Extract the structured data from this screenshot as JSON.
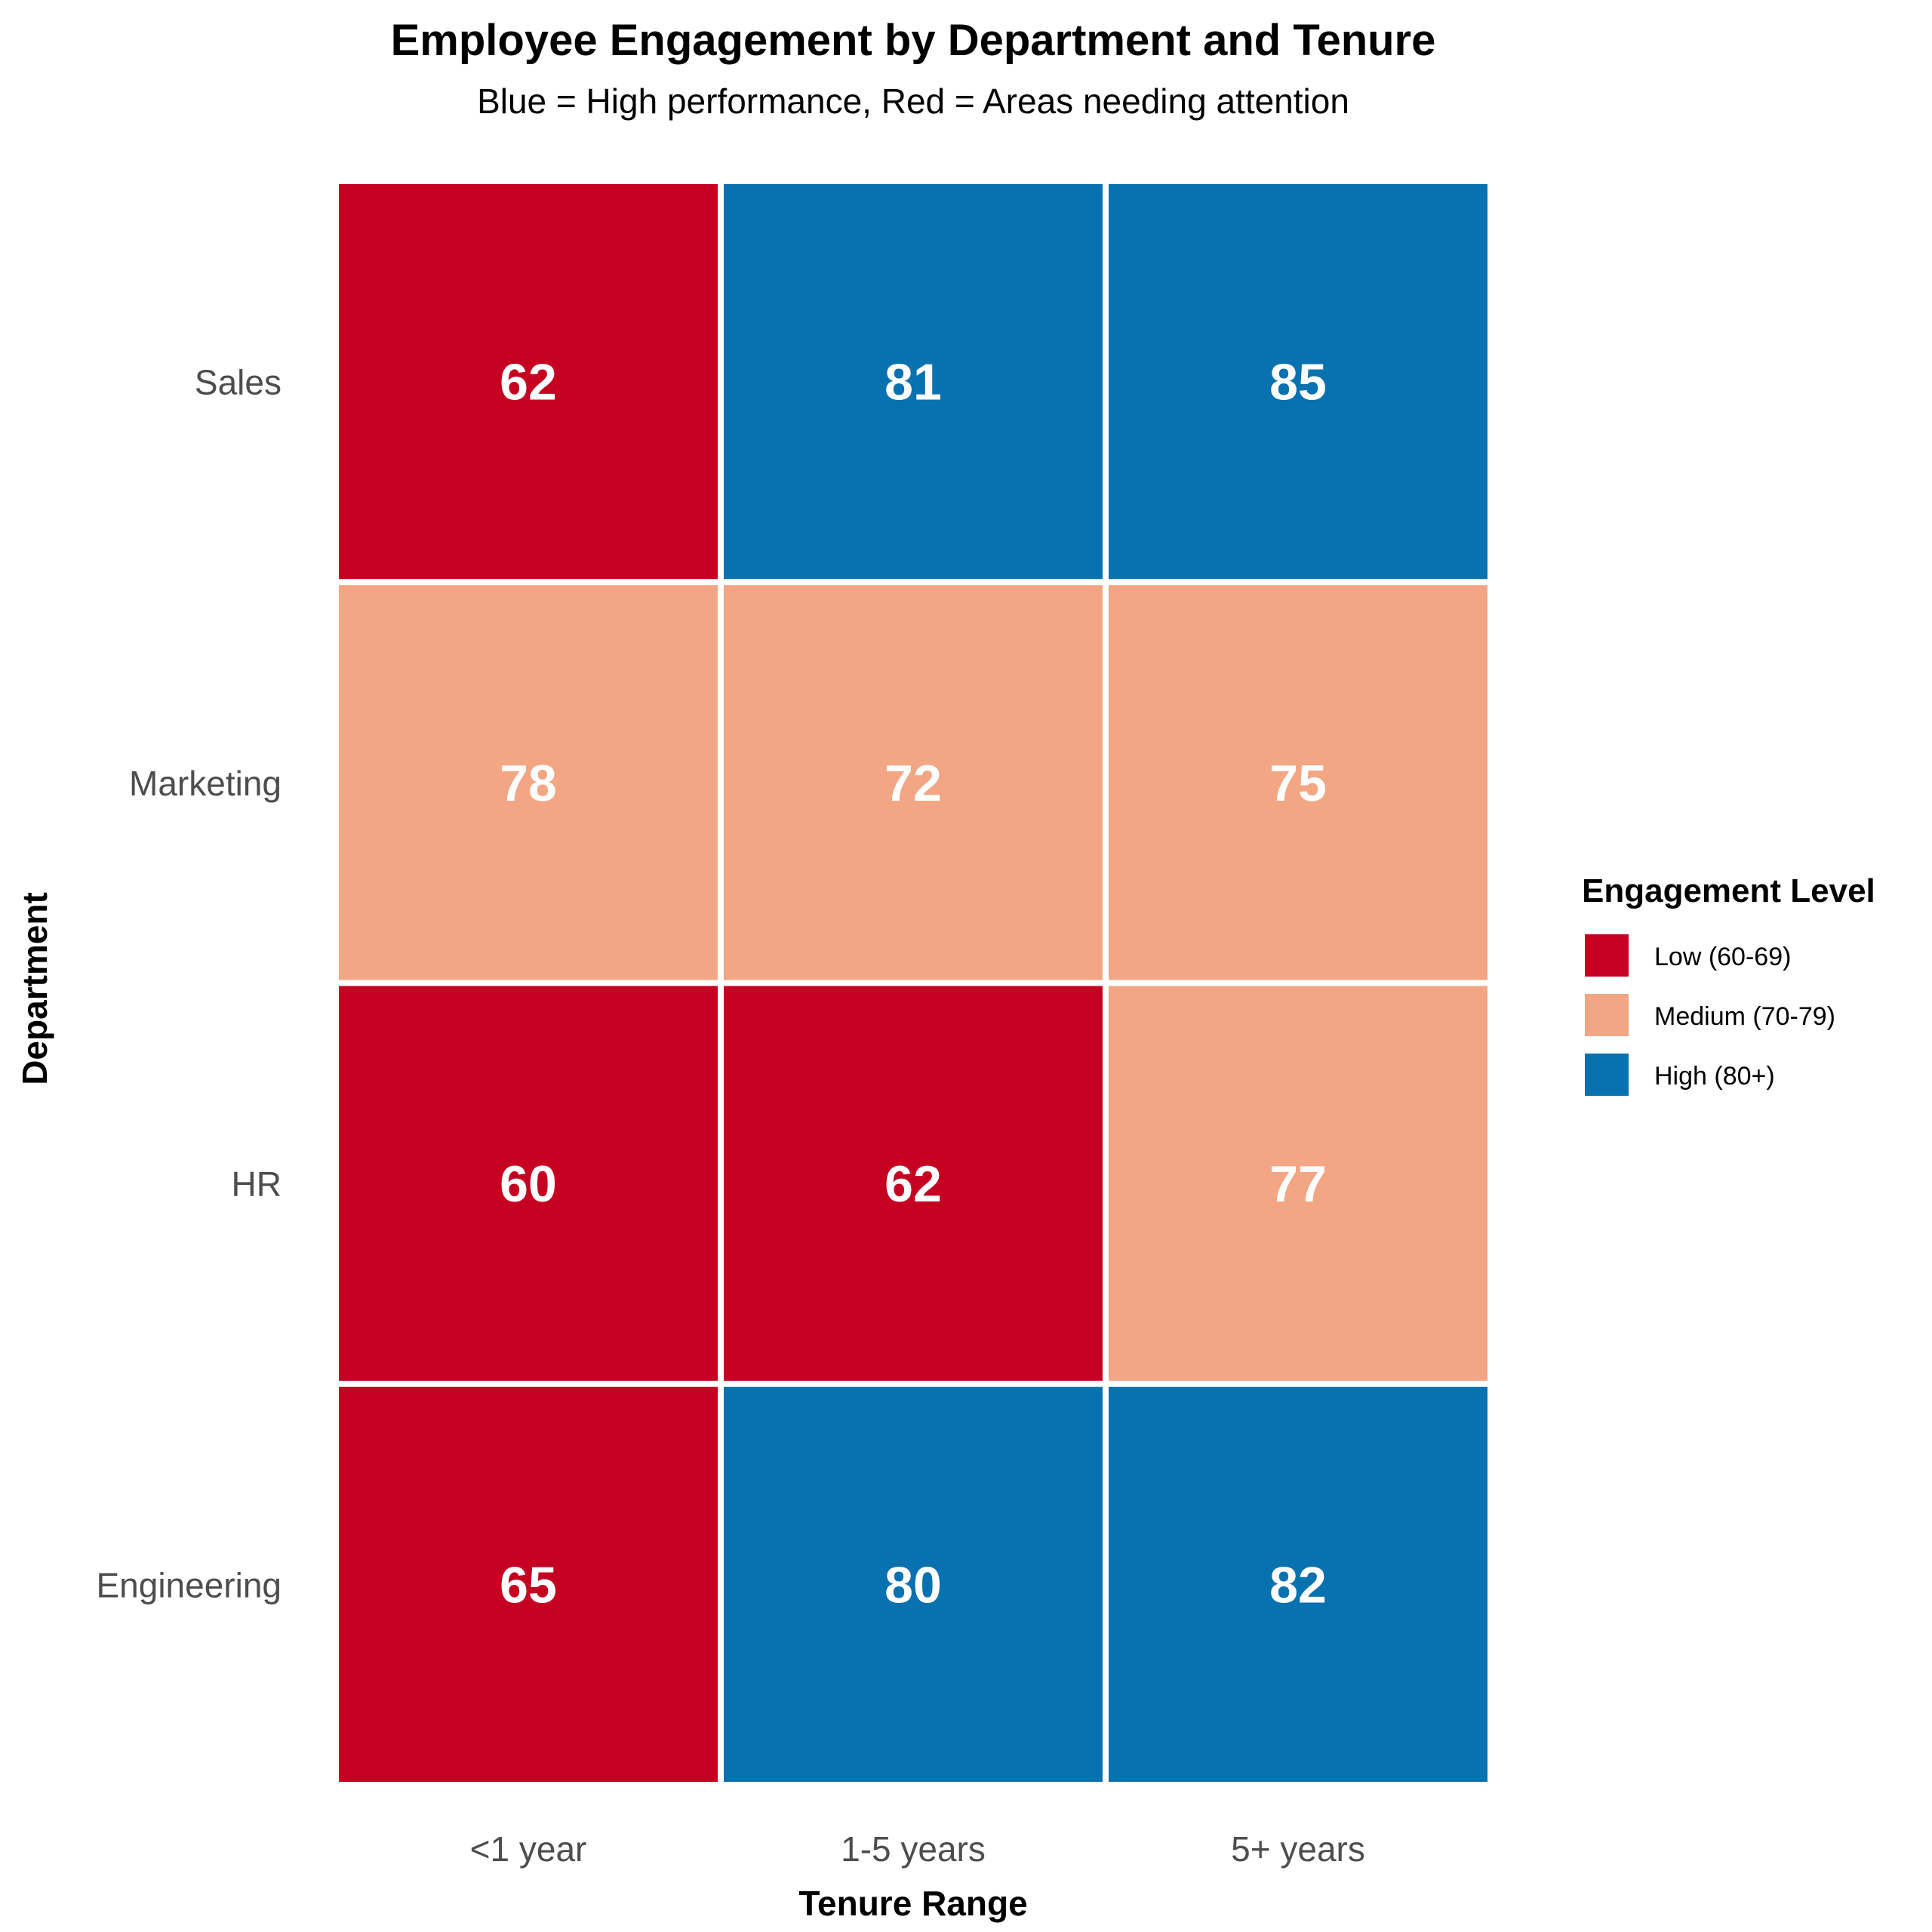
{
  "chart_data": {
    "type": "heatmap",
    "title": "Employee Engagement by Department and Tenure",
    "subtitle": "Blue = High performance, Red = Areas needing attention",
    "xlabel": "Tenure Range",
    "ylabel": "Department",
    "x_categories": [
      "<1 year",
      "1-5 years",
      "5+ years"
    ],
    "y_categories": [
      "Sales",
      "Marketing",
      "HR",
      "Engineering"
    ],
    "values": [
      [
        62,
        81,
        85
      ],
      [
        78,
        72,
        75
      ],
      [
        60,
        62,
        77
      ],
      [
        65,
        80,
        82
      ]
    ],
    "levels": [
      [
        0,
        2,
        2
      ],
      [
        1,
        1,
        1
      ],
      [
        0,
        0,
        1
      ],
      [
        0,
        2,
        2
      ]
    ],
    "legend": {
      "title": "Engagement Level",
      "position": "right",
      "entries": [
        {
          "label": "Low (60-69)",
          "color": "#c60021"
        },
        {
          "label": "Medium (70-79)",
          "color": "#f3a683"
        },
        {
          "label": "High (80+)",
          "color": "#0871b0"
        }
      ]
    }
  }
}
